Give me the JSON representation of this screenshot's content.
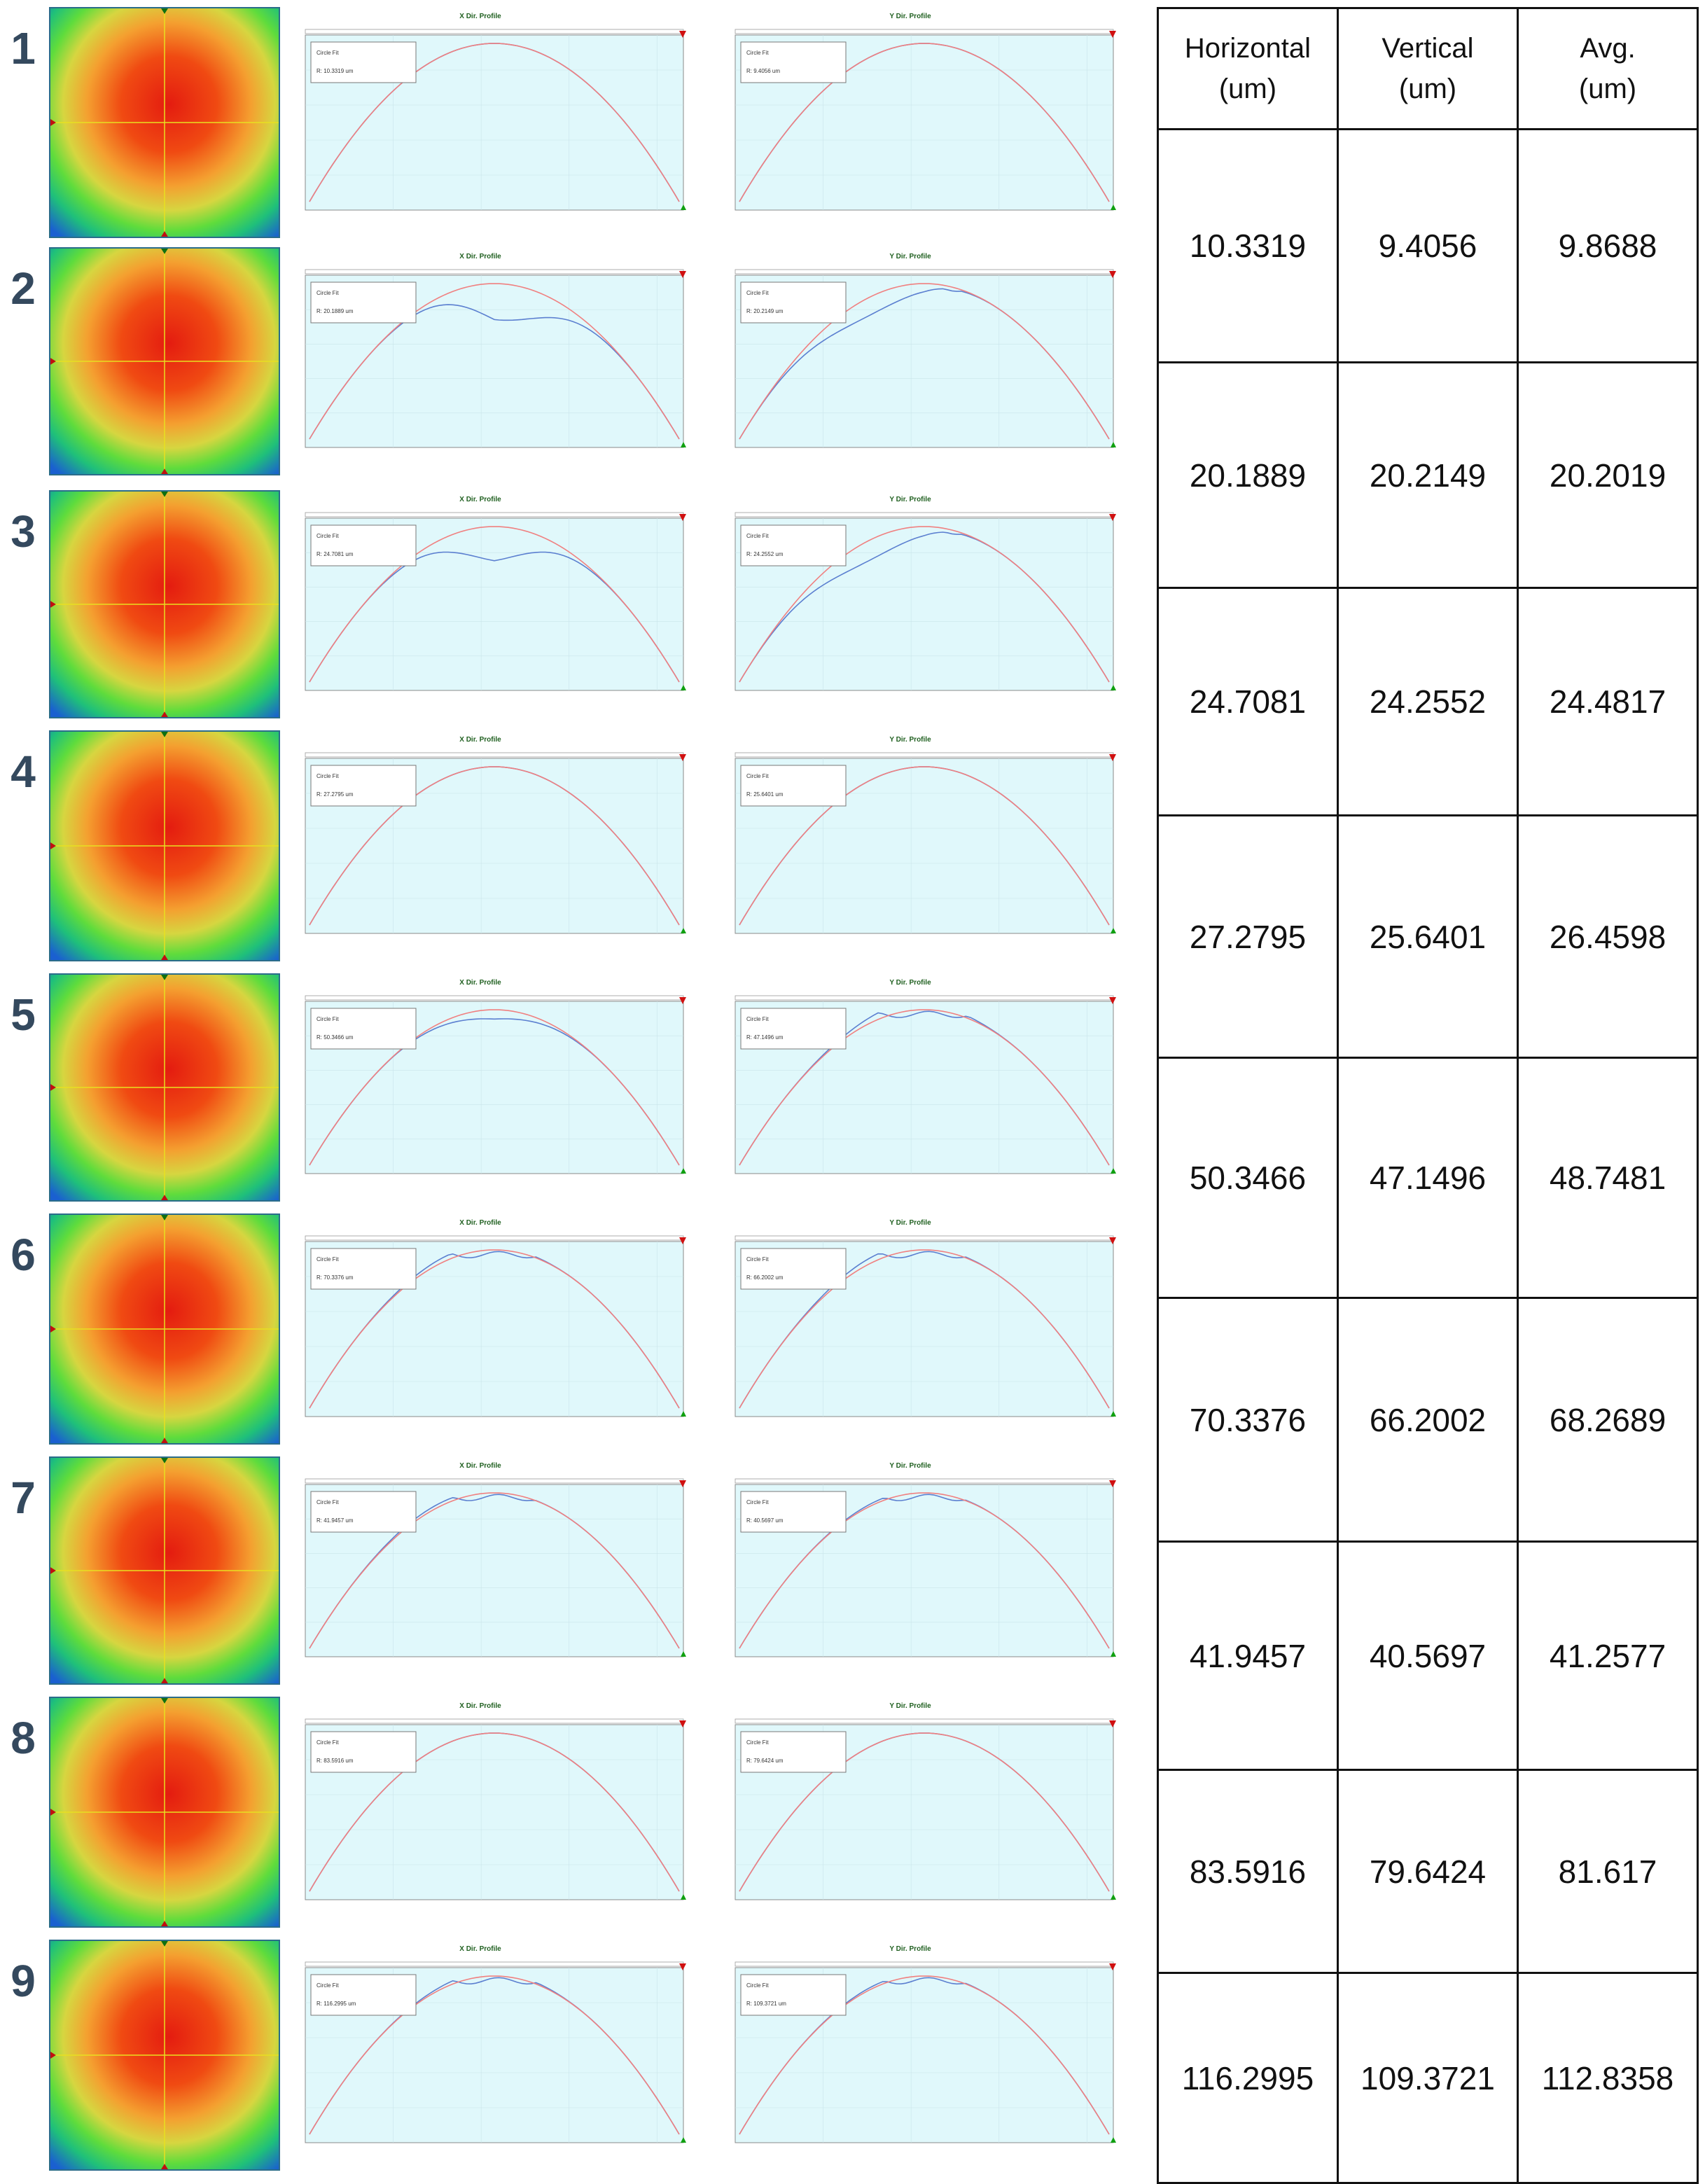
{
  "table": {
    "headers": [
      "Horizontal\n(um)",
      "Vertical\n(um)",
      "Avg.\n(um)"
    ],
    "rows": [
      {
        "label": "1",
        "horizontal": "10.3319",
        "vertical": "9.4056",
        "avg": "9.8688"
      },
      {
        "label": "2",
        "horizontal": "20.1889",
        "vertical": "20.2149",
        "avg": "20.2019"
      },
      {
        "label": "3",
        "horizontal": "24.7081",
        "vertical": "24.2552",
        "avg": "24.4817"
      },
      {
        "label": "4",
        "horizontal": "27.2795",
        "vertical": "25.6401",
        "avg": "26.4598"
      },
      {
        "label": "5",
        "horizontal": "50.3466",
        "vertical": "47.1496",
        "avg": "48.7481"
      },
      {
        "label": "6",
        "horizontal": "70.3376",
        "vertical": "66.2002",
        "avg": "68.2689"
      },
      {
        "label": "7",
        "horizontal": "41.9457",
        "vertical": "40.5697",
        "avg": "41.2577"
      },
      {
        "label": "8",
        "horizontal": "83.5916",
        "vertical": "79.6424",
        "avg": "81.617"
      },
      {
        "label": "9",
        "horizontal": "116.2995",
        "vertical": "109.3721",
        "avg": "112.8358"
      }
    ]
  },
  "profiles": {
    "x_title": "X Dir. Profile",
    "y_title": "Y Dir. Profile",
    "fit_label": "Circle Fit",
    "x_fit_r": [
      "R: 10.3319 um",
      "R: 20.1889 um",
      "R: 24.7081 um",
      "R: 27.2795 um",
      "R: 50.3466 um",
      "R: 70.3376 um",
      "R: 41.9457 um",
      "R: 83.5916 um",
      "R: 116.2995 um"
    ],
    "y_fit_r": [
      "R: 9.4056 um",
      "R: 20.2149 um",
      "R: 24.2552 um",
      "R: 25.6401 um",
      "R: 47.1496 um",
      "R: 66.2002 um",
      "R: 40.5697 um",
      "R: 79.6424 um",
      "R: 109.3721 um"
    ]
  },
  "colors": {
    "plot_bg": "#e0f8fb",
    "measured": "#5b7fd0",
    "fit": "#f08080",
    "crosshair": "#e8e020",
    "label": "#34495e"
  }
}
